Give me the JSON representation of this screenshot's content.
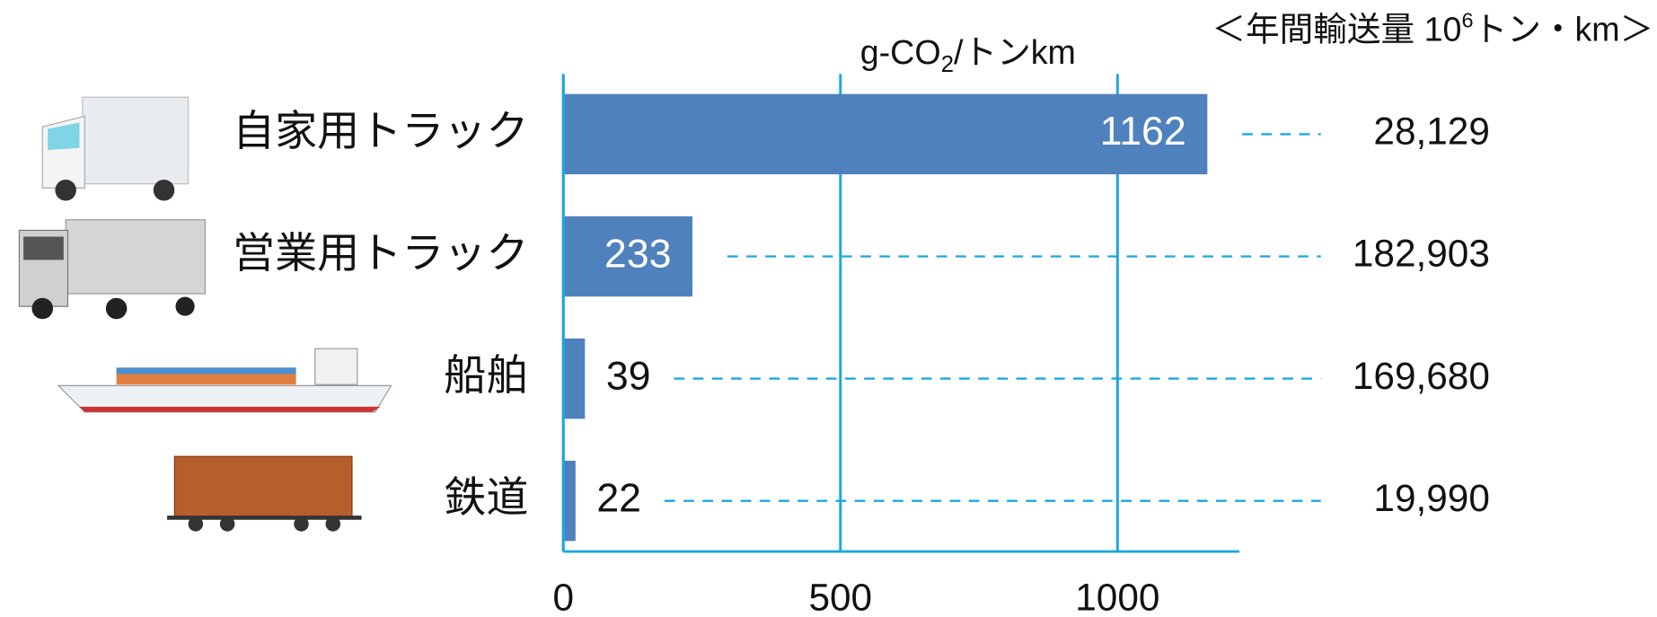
{
  "chart_data": {
    "type": "bar",
    "orientation": "horizontal",
    "x_label_parts": [
      "g-CO",
      "2",
      "/トンkm"
    ],
    "categories": [
      "自家用トラック",
      "営業用トラック",
      "船舶",
      "鉄道"
    ],
    "values": [
      1162,
      233,
      39,
      22
    ],
    "color": "#4f81bd",
    "xlim": [
      0,
      1220
    ],
    "xticks": [
      0,
      500,
      1000
    ],
    "grid": true,
    "axis_color": "#1aa7e0",
    "annual_volume": {
      "title_parts": [
        "＜年間輸送量 10",
        "6",
        "トン・km＞"
      ],
      "values": [
        28129,
        182903,
        169680,
        19990
      ],
      "value_labels": [
        "28,129",
        "182,903",
        "169,680",
        "19,990"
      ]
    }
  }
}
